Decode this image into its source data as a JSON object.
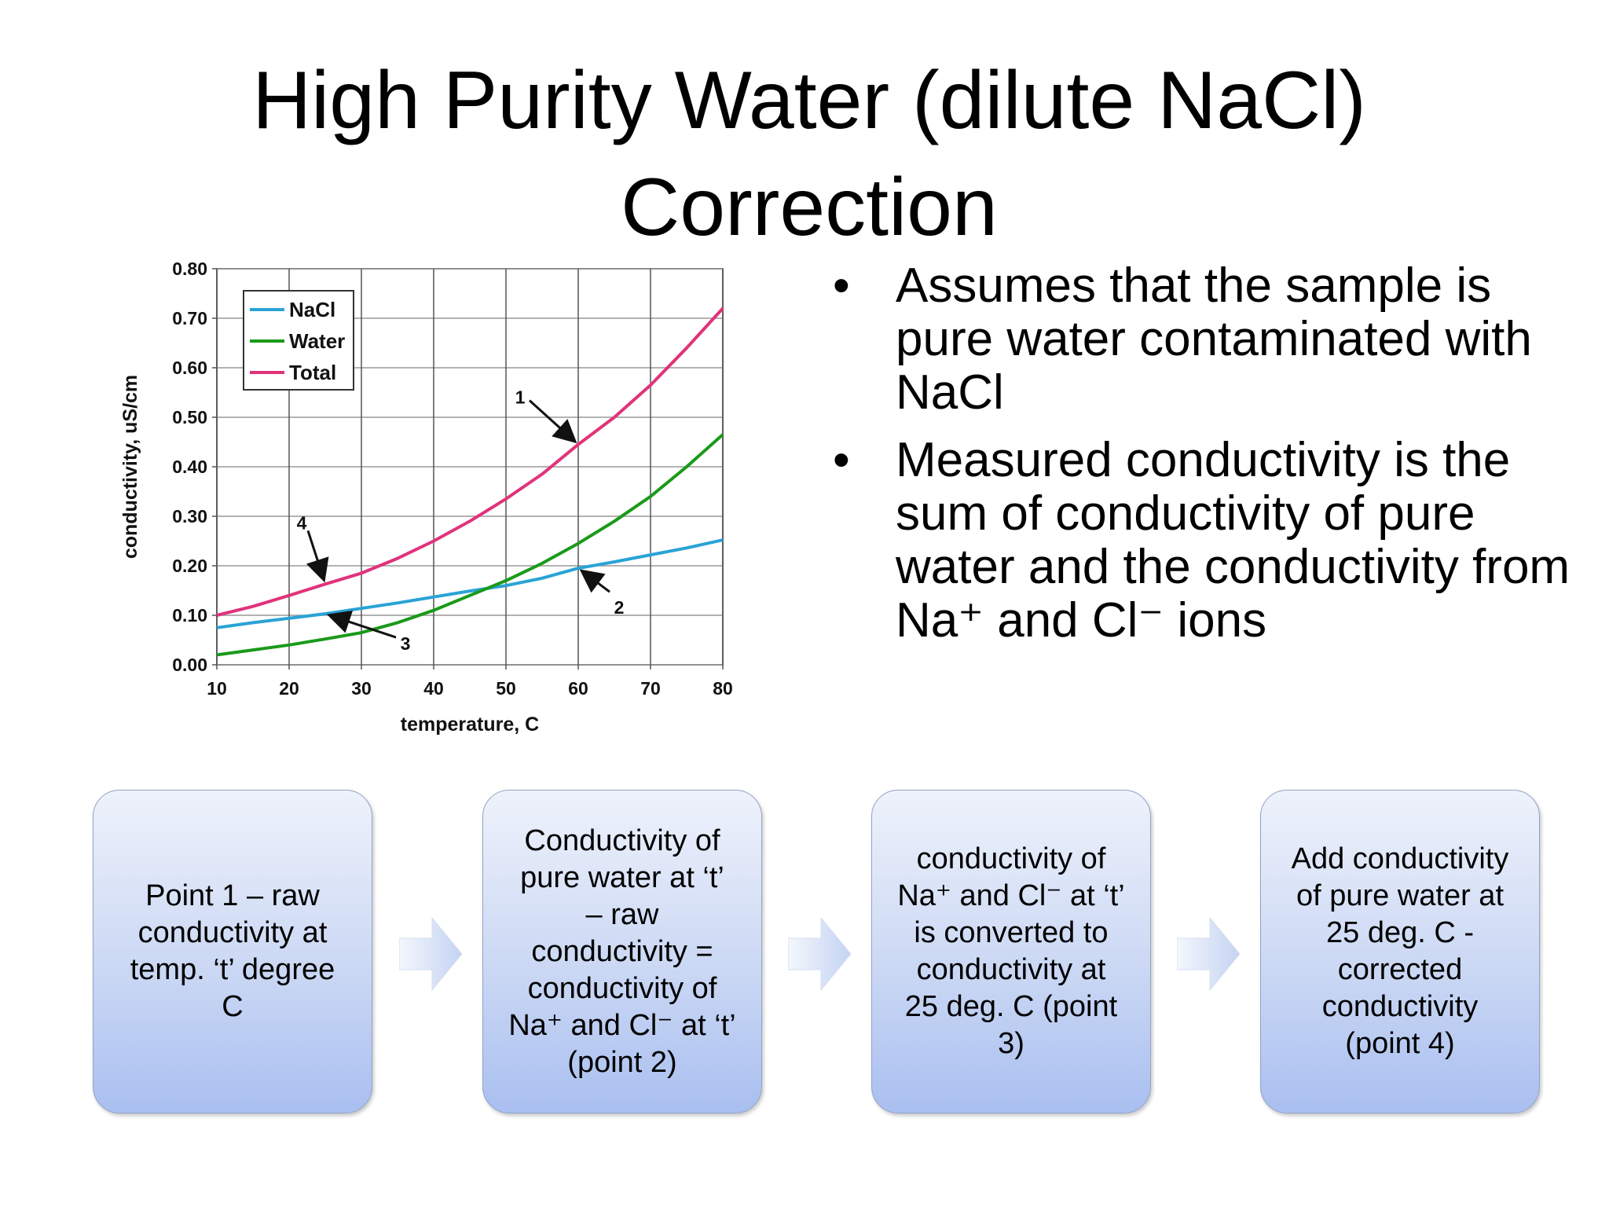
{
  "slide": {
    "title_line1": "High Purity Water (dilute NaCl)",
    "title_line2": "Correction"
  },
  "bullets": [
    "Assumes that the sample is pure water contaminated with NaCl",
    "Measured conductivity is the sum of conductivity of pure water and the conductivity from Na⁺ and Cl⁻ ions"
  ],
  "bullet_glyph": "•",
  "flow": {
    "steps": [
      "Point 1 – raw\nconductivity at\ntemp. ‘t’ degree\nC",
      "Conductivity of\npure water at ‘t’\n– raw\nconductivity =\nconductivity of\nNa⁺ and Cl⁻ at ‘t’\n(point 2)",
      "conductivity of\nNa⁺ and Cl⁻ at ‘t’\nis converted to\nconductivity at\n25 deg. C (point\n3)",
      "Add conductivity\nof pure water at\n25 deg. C  -\ncorrected\nconductivity\n(point 4)"
    ],
    "arrow_icon": "right-arrow-icon"
  },
  "chart_data": {
    "type": "line",
    "title": "",
    "xlabel": "temperature, C",
    "ylabel": "conductivity, uS/cm",
    "xlim": [
      10,
      80
    ],
    "ylim": [
      0.0,
      0.8
    ],
    "xticks": [
      "10",
      "20",
      "30",
      "40",
      "50",
      "60",
      "70",
      "80"
    ],
    "yticks": [
      "0.00",
      "0.10",
      "0.20",
      "0.30",
      "0.40",
      "0.50",
      "0.60",
      "0.70",
      "0.80"
    ],
    "grid": true,
    "legend_position": "top-left",
    "x": [
      10,
      15,
      20,
      25,
      30,
      35,
      40,
      45,
      50,
      55,
      60,
      65,
      70,
      75,
      80
    ],
    "series": [
      {
        "name": "NaCl",
        "color": "#29a3d6",
        "values": [
          0.075,
          0.085,
          0.094,
          0.103,
          0.114,
          0.125,
          0.137,
          0.149,
          0.16,
          0.175,
          0.195,
          0.208,
          0.222,
          0.236,
          0.252
        ]
      },
      {
        "name": "Water",
        "color": "#1a9a1a",
        "values": [
          0.02,
          0.03,
          0.04,
          0.052,
          0.065,
          0.085,
          0.11,
          0.14,
          0.17,
          0.205,
          0.245,
          0.29,
          0.34,
          0.4,
          0.465
        ]
      },
      {
        "name": "Total",
        "color": "#e0337a",
        "values": [
          0.1,
          0.118,
          0.14,
          0.163,
          0.185,
          0.215,
          0.25,
          0.29,
          0.335,
          0.385,
          0.445,
          0.5,
          0.565,
          0.64,
          0.72
        ]
      }
    ],
    "annotations": [
      {
        "label": "1",
        "x": 60,
        "y": 0.445
      },
      {
        "label": "2",
        "x": 60,
        "y": 0.195
      },
      {
        "label": "3",
        "x": 25,
        "y": 0.103
      },
      {
        "label": "4",
        "x": 25,
        "y": 0.163
      }
    ]
  }
}
